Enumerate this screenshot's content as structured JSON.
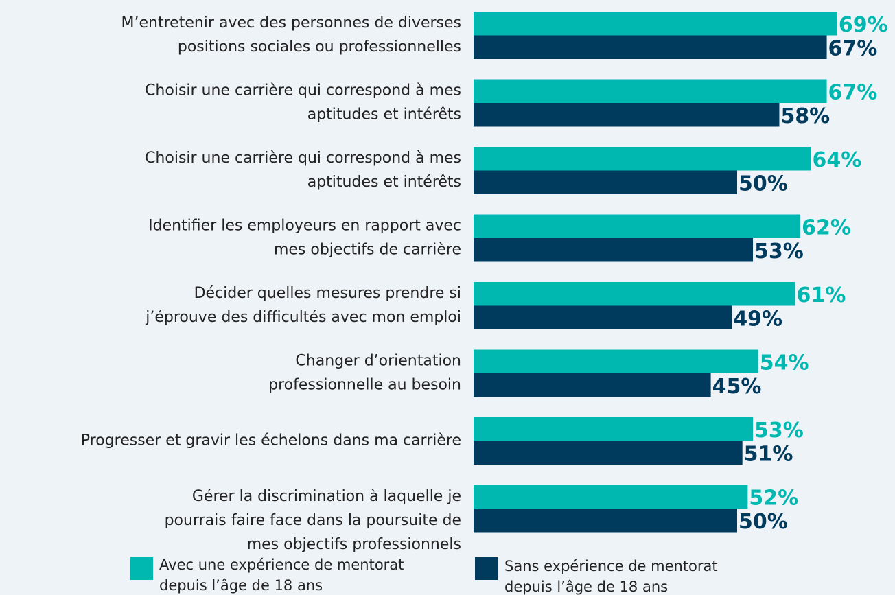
{
  "chart_data": {
    "type": "bar",
    "orientation": "horizontal",
    "categories": [
      [
        "M’entretenir avec des personnes de diverses",
        "positions sociales ou professionnelles"
      ],
      [
        "Choisir une carrière qui correspond à mes",
        "aptitudes et intérêts"
      ],
      [
        "Choisir une carrière qui correspond à mes",
        "aptitudes et intérêts"
      ],
      [
        "Identifier les employeurs en rapport avec",
        "mes objectifs de carrière"
      ],
      [
        "Décider quelles mesures prendre si",
        "j’éprouve des difficultés avec mon emploi"
      ],
      [
        "Changer d’orientation",
        "professionnelle au besoin"
      ],
      [
        "Progresser et gravir les échelons dans ma carrière"
      ],
      [
        "Gérer la discrimination à laquelle je",
        "pourrais faire face dans la poursuite de",
        "mes objectifs professionnels"
      ]
    ],
    "series": [
      {
        "name": "Avec une expérience de mentorat depuis l’âge de 18 ans",
        "color": "#00b8b0",
        "values": [
          69,
          67,
          64,
          62,
          61,
          54,
          53,
          52
        ],
        "value_labels": [
          "69%",
          "67%",
          "64%",
          "62%",
          "61%",
          "54%",
          "53%",
          "52%"
        ]
      },
      {
        "name": "Sans expérience de mentorat depuis l’âge de 18 ans",
        "color": "#003a5d",
        "values": [
          67,
          58,
          50,
          53,
          49,
          45,
          51,
          50
        ],
        "value_labels": [
          "67%",
          "58%",
          "50%",
          "53%",
          "49%",
          "45%",
          "51%",
          "50%"
        ]
      }
    ],
    "xlim": [
      0,
      100
    ]
  }
}
